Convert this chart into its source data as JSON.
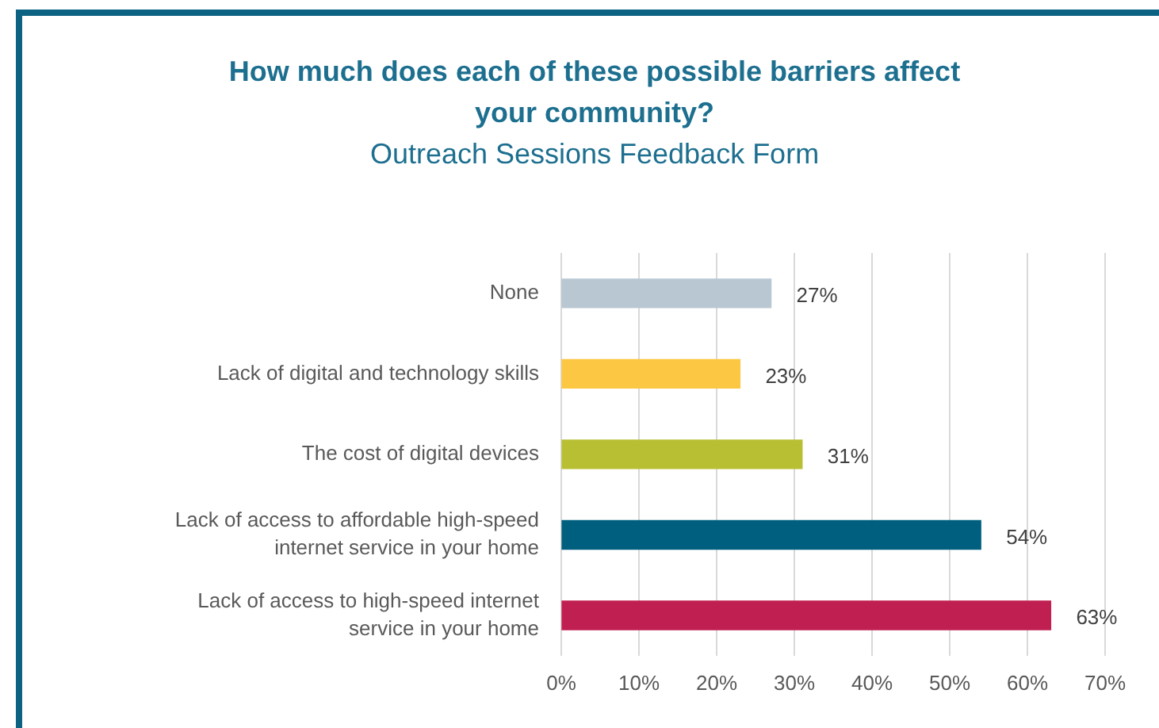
{
  "chart_data": {
    "type": "bar",
    "orientation": "horizontal",
    "title": "How much does each of these possible barriers affect your community?",
    "subtitle": "Outreach Sessions Feedback Form",
    "categories": [
      "None",
      "Lack of digital and technology skills",
      "The cost of digital devices",
      "Lack of access to affordable high-speed internet service in your home",
      "Lack of access to high-speed internet service in your home"
    ],
    "values": [
      27,
      23,
      31,
      54,
      63
    ],
    "value_labels": [
      "27%",
      "23%",
      "31%",
      "54%",
      "63%"
    ],
    "colors": [
      "#b8c7d2",
      "#fcc843",
      "#b9bf32",
      "#005f7f",
      "#c01f51"
    ],
    "xlim": [
      0,
      70
    ],
    "xticks": [
      {
        "value": 0,
        "label": "0%"
      },
      {
        "value": 10,
        "label": "10%"
      },
      {
        "value": 20,
        "label": "20%"
      },
      {
        "value": 30,
        "label": "30%"
      },
      {
        "value": 40,
        "label": "40%"
      },
      {
        "value": 50,
        "label": "50%"
      },
      {
        "value": 60,
        "label": "60%"
      },
      {
        "value": 70,
        "label": "70%"
      }
    ],
    "grid": "x",
    "legend": false
  }
}
